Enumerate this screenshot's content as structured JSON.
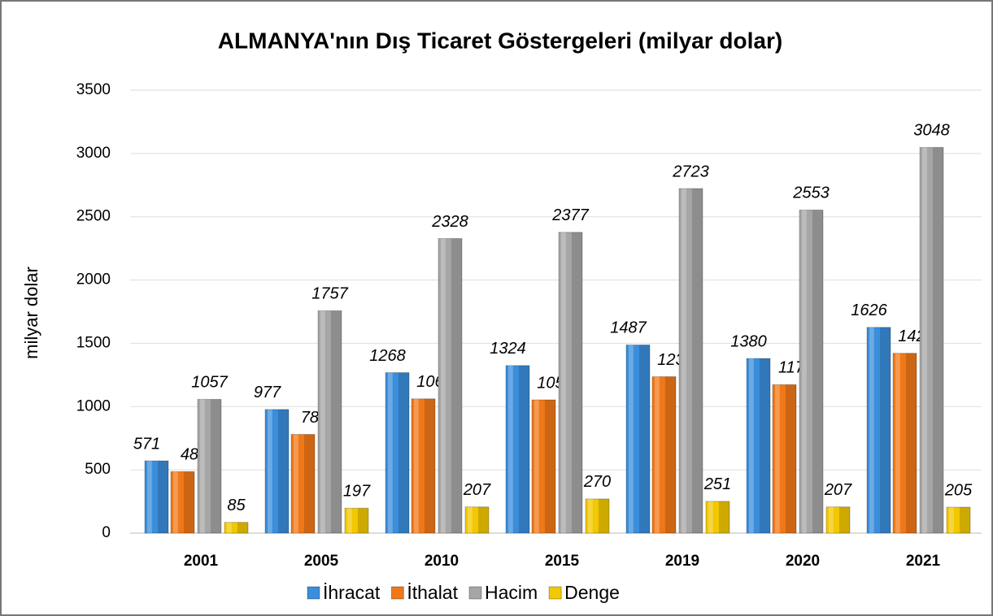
{
  "chart_data": {
    "type": "bar",
    "title": "ALMANYA'nın Dış Ticaret Göstergeleri  (milyar dolar)",
    "y_label": "milyar dolar",
    "categories": [
      "2001",
      "2005",
      "2010",
      "2015",
      "2019",
      "2020",
      "2021"
    ],
    "series": [
      {
        "name": "İhracat",
        "color": "#3a8edb",
        "values": [
          571,
          977,
          1268,
          1324,
          1487,
          1380,
          1626
        ]
      },
      {
        "name": "İthalat",
        "color": "#f07818",
        "values": [
          486,
          780,
          1061,
          1053,
          1236,
          1173,
          1421
        ]
      },
      {
        "name": "Hacim",
        "color": "#a6a6a6",
        "values": [
          1057,
          1757,
          2328,
          2377,
          2723,
          2553,
          3048
        ]
      },
      {
        "name": "Denge",
        "color": "#f2c800",
        "values": [
          85,
          197,
          207,
          270,
          251,
          207,
          205
        ]
      }
    ],
    "ylim": [
      0,
      3500
    ],
    "yticks": [
      0,
      500,
      1000,
      1500,
      2000,
      2500,
      3000,
      3500
    ],
    "grid": true,
    "legend": "bottom"
  }
}
